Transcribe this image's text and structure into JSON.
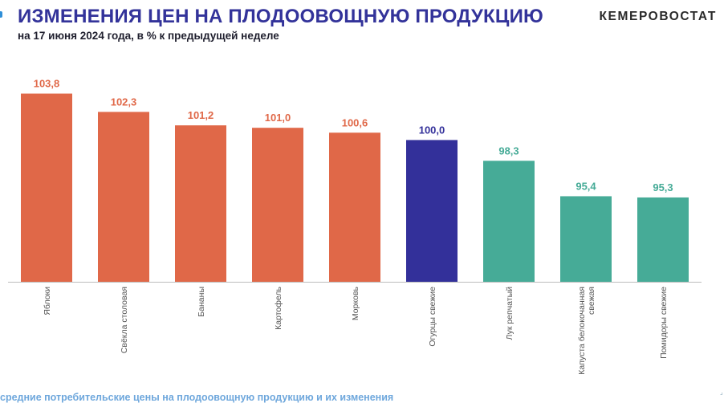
{
  "header": {
    "title": "ИЗМЕНЕНИЯ ЦЕН НА ПЛОДООВОЩНУЮ ПРОДУКЦИЮ",
    "subtitle": "на 17 июня 2024 года, в % к предыдущей неделе",
    "brand": "КЕМЕРОВОСТАТ"
  },
  "footer": {
    "text": "средние потребительские цены  на плодоовощную продукцию  и их изменения"
  },
  "colors": {
    "increase": "#e06848",
    "unchanged": "#33309a",
    "decrease": "#46ab97",
    "title": "#33339a"
  },
  "chart_data": {
    "type": "bar",
    "categories": [
      "Яблоки",
      "Свёкла столовая",
      "Бананы",
      "Картофель",
      "Морковь",
      "Огурцы свежие",
      "Лук репчатый",
      "Капуста белокочанная свежая",
      "Помидоры свежие"
    ],
    "values": [
      103.8,
      102.3,
      101.2,
      101.0,
      100.6,
      100.0,
      98.3,
      95.4,
      95.3
    ],
    "value_labels": [
      "103,8",
      "102,3",
      "101,2",
      "101,0",
      "100,6",
      "100,0",
      "98,3",
      "95,4",
      "95,3"
    ],
    "category_labels": [
      [
        "Яблоки"
      ],
      [
        "Свёкла столовая"
      ],
      [
        "Бананы"
      ],
      [
        "Картофель"
      ],
      [
        "Морковь"
      ],
      [
        "Огурцы свежие"
      ],
      [
        "Лук репчатый"
      ],
      [
        "Капуста белокочанная",
        "свежая"
      ],
      [
        "Помидоры свежие"
      ]
    ],
    "bar_colors": [
      "#e06848",
      "#e06848",
      "#e06848",
      "#e06848",
      "#e06848",
      "#33309a",
      "#46ab97",
      "#46ab97",
      "#46ab97"
    ],
    "ylim": [
      88.4,
      104.1
    ],
    "grid": false,
    "legend": "none"
  }
}
